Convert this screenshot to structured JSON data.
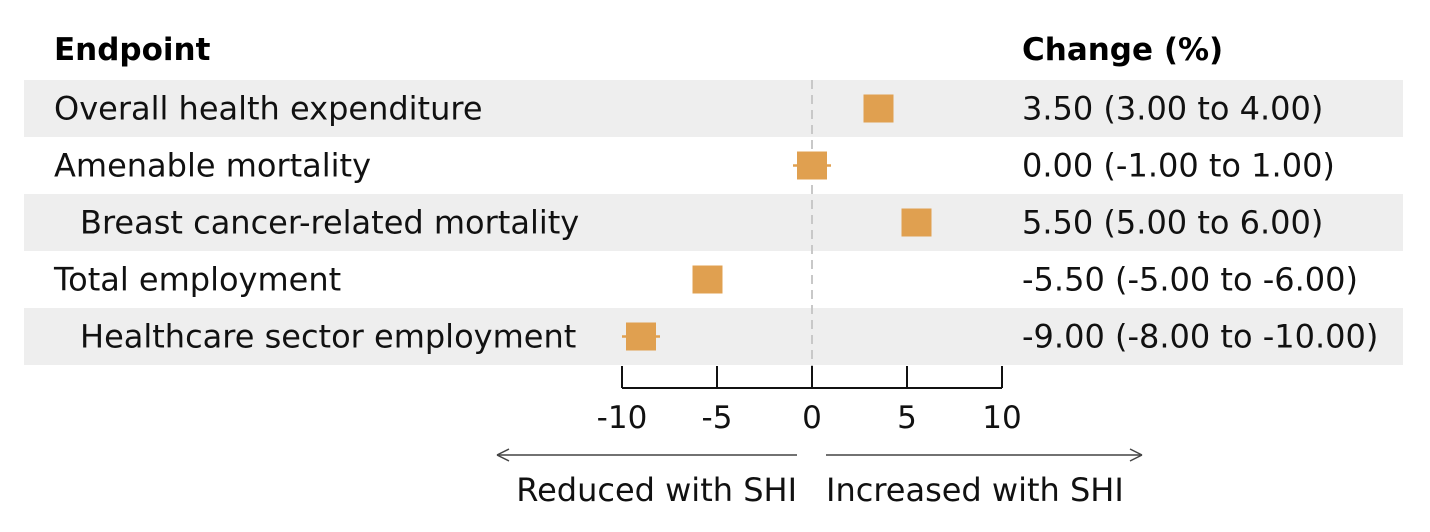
{
  "headers": {
    "endpoint": "Endpoint",
    "change": "Change (%)"
  },
  "direction_labels": {
    "left": "Reduced with SHI",
    "right": "Increased with SHI"
  },
  "colors": {
    "marker": "#E0A050",
    "row_shade": "#EEEEEE",
    "zero_line": "#C8C8C8",
    "axis": "#111111"
  },
  "chart_data": {
    "type": "forest",
    "xlim": [
      -10,
      10
    ],
    "xticks": [
      -10,
      -5,
      0,
      5,
      10
    ],
    "reference_line": 0,
    "rows": [
      {
        "label": "Overall health expenditure",
        "indent": 0,
        "shaded": true,
        "estimate": 3.5,
        "lower": 3.0,
        "upper": 4.0,
        "text": "3.50 (3.00 to 4.00)"
      },
      {
        "label": "Amenable mortality",
        "indent": 0,
        "shaded": false,
        "estimate": 0.0,
        "lower": -1.0,
        "upper": 1.0,
        "text": "0.00 (-1.00 to 1.00)"
      },
      {
        "label": "Breast cancer-related mortality",
        "indent": 1,
        "shaded": true,
        "estimate": 5.5,
        "lower": 5.0,
        "upper": 6.0,
        "text": "5.50 (5.00 to 6.00)"
      },
      {
        "label": "Total employment",
        "indent": 0,
        "shaded": false,
        "estimate": -5.5,
        "lower": -6.0,
        "upper": -5.0,
        "text": "-5.50 (-5.00 to -6.00)"
      },
      {
        "label": "Healthcare sector employment",
        "indent": 1,
        "shaded": true,
        "estimate": -9.0,
        "lower": -10.0,
        "upper": -8.0,
        "text": "-9.00 (-8.00 to -10.00)"
      }
    ]
  }
}
